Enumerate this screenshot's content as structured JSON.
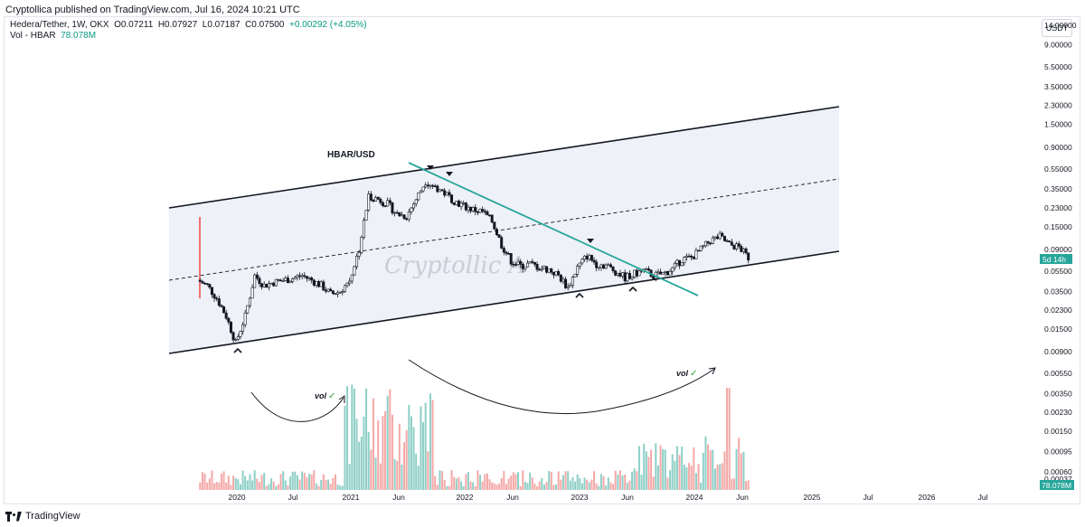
{
  "header": {
    "published": "Cryptollica published on TradingView.com, Jul 16, 2024 10:21 UTC"
  },
  "legend": {
    "symbol": "Hedera/Tether, 1W, OKX",
    "o_label": "O",
    "o": "0.07211",
    "h_label": "H",
    "h": "0.07927",
    "l_label": "L",
    "l": "0.07187",
    "c_label": "C",
    "c": "0.07500",
    "change": "+0.00292 (+4.05%)",
    "vol_label": "Vol - HBAR",
    "vol_value": "78.078M"
  },
  "currency_button": "USDT",
  "footer": {
    "brand": "TradingView"
  },
  "colors": {
    "up": "#26a69a",
    "down": "#ef5350",
    "trendline": "#26a69a",
    "channel_fill": "#f0f3fa",
    "vol_up": "#8ecfc7",
    "vol_down": "#f4a9a7"
  },
  "chart_data": {
    "type": "candlestick",
    "title": "HBAR/USD",
    "watermark": "Cryptollic A",
    "y_scale": "log",
    "y_ticks": [
      "14.00000",
      "9.00000",
      "5.50000",
      "3.50000",
      "2.30000",
      "1.50000",
      "0.90000",
      "0.55000",
      "0.35000",
      "0.23000",
      "0.15000",
      "0.09000",
      "0.05500",
      "0.03500",
      "0.02300",
      "0.01500",
      "0.00900",
      "0.00550",
      "0.00350",
      "0.00230",
      "0.00150",
      "0.00095",
      "0.00060"
    ],
    "y_ticks_cut": "0.00037",
    "x_ticks": [
      "2020",
      "Jul",
      "2021",
      "Jun",
      "2022",
      "Jun",
      "2023",
      "Jun",
      "2024",
      "Jun",
      "2025",
      "Jul",
      "2026",
      "Jul"
    ],
    "price_badge": {
      "value": "0.075",
      "label": "5d 14h"
    },
    "volume_badge": "78.078M",
    "price_path": [
      [
        "2019-09",
        0.045
      ],
      [
        "2019-10",
        0.04
      ],
      [
        "2019-11",
        0.03
      ],
      [
        "2019-12",
        0.02
      ],
      [
        "2020-01",
        0.011
      ],
      [
        "2020-02",
        0.02
      ],
      [
        "2020-03",
        0.05
      ],
      [
        "2020-04",
        0.04
      ],
      [
        "2020-05",
        0.043
      ],
      [
        "2020-06",
        0.045
      ],
      [
        "2020-07",
        0.047
      ],
      [
        "2020-08",
        0.05
      ],
      [
        "2020-09",
        0.045
      ],
      [
        "2020-10",
        0.04
      ],
      [
        "2020-11",
        0.033
      ],
      [
        "2020-12",
        0.035
      ],
      [
        "2021-01",
        0.045
      ],
      [
        "2021-02",
        0.09
      ],
      [
        "2021-03",
        0.3
      ],
      [
        "2021-04",
        0.28
      ],
      [
        "2021-05",
        0.25
      ],
      [
        "2021-06",
        0.2
      ],
      [
        "2021-07",
        0.19
      ],
      [
        "2021-08",
        0.28
      ],
      [
        "2021-09",
        0.42
      ],
      [
        "2021-10",
        0.37
      ],
      [
        "2021-11",
        0.32
      ],
      [
        "2021-12",
        0.27
      ],
      [
        "2022-01",
        0.24
      ],
      [
        "2022-02",
        0.22
      ],
      [
        "2022-03",
        0.21
      ],
      [
        "2022-04",
        0.17
      ],
      [
        "2022-05",
        0.1
      ],
      [
        "2022-06",
        0.07
      ],
      [
        "2022-07",
        0.062
      ],
      [
        "2022-08",
        0.065
      ],
      [
        "2022-09",
        0.06
      ],
      [
        "2022-10",
        0.057
      ],
      [
        "2022-11",
        0.05
      ],
      [
        "2022-12",
        0.038
      ],
      [
        "2023-01",
        0.06
      ],
      [
        "2023-02",
        0.078
      ],
      [
        "2023-03",
        0.065
      ],
      [
        "2023-04",
        0.063
      ],
      [
        "2023-05",
        0.055
      ],
      [
        "2023-06",
        0.048
      ],
      [
        "2023-07",
        0.052
      ],
      [
        "2023-08",
        0.056
      ],
      [
        "2023-09",
        0.05
      ],
      [
        "2023-10",
        0.052
      ],
      [
        "2023-11",
        0.058
      ],
      [
        "2023-12",
        0.072
      ],
      [
        "2024-01",
        0.075
      ],
      [
        "2024-02",
        0.09
      ],
      [
        "2024-03",
        0.11
      ],
      [
        "2024-04",
        0.12
      ],
      [
        "2024-05",
        0.1
      ],
      [
        "2024-06",
        0.095
      ],
      [
        "2024-07",
        0.075
      ]
    ],
    "annotations": [
      {
        "text": "vol",
        "mark": "✓"
      },
      {
        "text": "vol",
        "mark": "✓"
      }
    ]
  }
}
